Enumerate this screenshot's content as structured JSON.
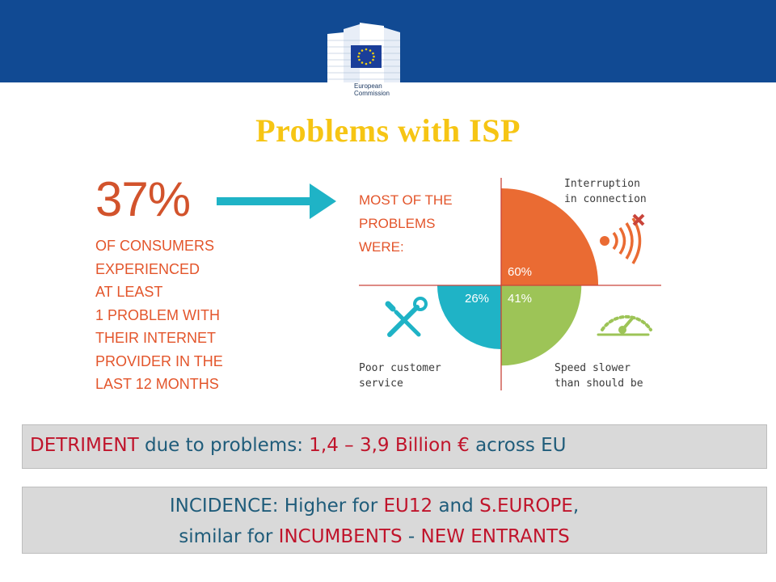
{
  "header": {
    "bar_color": "#114a93",
    "logo": {
      "line1": "European",
      "line2": "Commission",
      "icon": "eu-flag-building-icon"
    }
  },
  "title": "Problems with ISP",
  "stat": {
    "percent": "37%",
    "lines": [
      "OF CONSUMERS",
      "EXPERIENCED",
      "AT LEAST",
      "1 PROBLEM WITH",
      "THEIR INTERNET",
      "PROVIDER IN THE",
      "LAST  12 MONTHS"
    ]
  },
  "arrow_icon": "right-arrow-icon",
  "infographic": {
    "heading": [
      "MOST OF THE",
      "PROBLEMS",
      "WERE:"
    ],
    "interruption": {
      "lines": [
        "Interruption",
        "in connection"
      ],
      "value": "60%",
      "percent": 60,
      "color": "#ea6b33",
      "icon": "broken-signal-icon"
    },
    "poor_service": {
      "lines": [
        "Poor customer",
        "service"
      ],
      "value": "26%",
      "percent": 26,
      "color": "#1fb3c6",
      "icon": "wrench-screwdriver-icon"
    },
    "speed": {
      "lines": [
        "Speed slower",
        "than should be"
      ],
      "value": "41%",
      "percent": 41,
      "color": "#9dc457",
      "icon": "speedometer-icon"
    }
  },
  "detriment": {
    "label": "DETRIMENT",
    "text1": " due to problems:  ",
    "amount": "1,4 – 3,9 Billion €",
    "text2": " across EU"
  },
  "incidence": {
    "prefix": "INCIDENCE:  Higher for ",
    "eu12": "EU12",
    "and": " and ",
    "seurope": "S.EUROPE",
    "comma": ",",
    "line2_prefix": "similar for ",
    "incumbents": "INCUMBENTS",
    "dash": " - ",
    "new_entrants": "NEW ENTRANTS"
  }
}
